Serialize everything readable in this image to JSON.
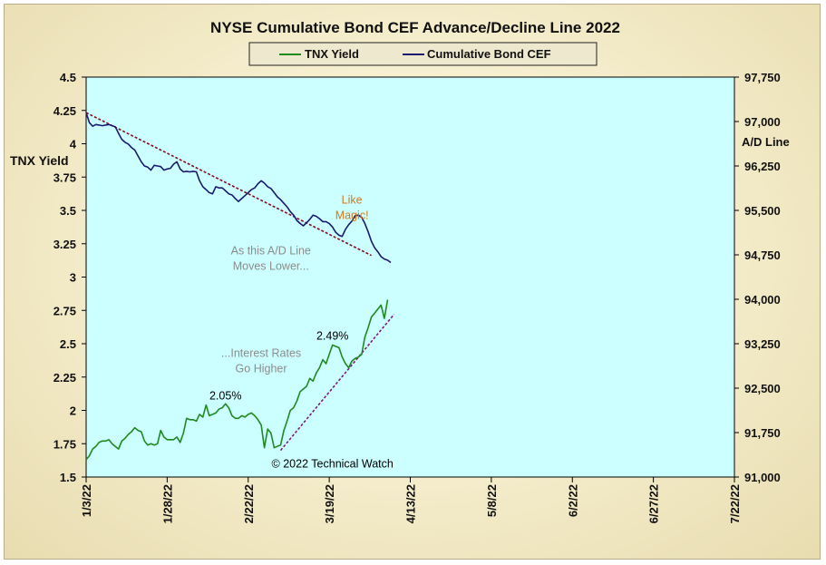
{
  "chart_data": {
    "type": "line",
    "title": "NYSE Cumulative  Bond CEF Advance/Decline  Line 2022",
    "y_left_label": "TNX Yield",
    "y_right_label": "A/D Line",
    "y_left_ticks": [
      "4.5",
      "4.25",
      "4",
      "3.75",
      "3.5",
      "3.25",
      "3",
      "2.75",
      "2.5",
      "2.25",
      "2",
      "1.75",
      "1.5"
    ],
    "y_right_ticks": [
      "97,750",
      "97,000",
      "96,250",
      "95,500",
      "94,750",
      "94,000",
      "93,250",
      "92,500",
      "91,750",
      "91,000"
    ],
    "x_ticks": [
      "1/3/22",
      "1/28/22",
      "2/22/22",
      "3/19/22",
      "4/13/22",
      "5/8/22",
      "6/2/22",
      "6/27/22",
      "7/22/22"
    ],
    "y_left_range": [
      1.5,
      4.5
    ],
    "y_right_range": [
      91000,
      97750
    ],
    "x_range_days": [
      0,
      200
    ],
    "grid": false,
    "legend_position": "top-center",
    "series": [
      {
        "name": "TNX Yield",
        "color": "#1f8a1f",
        "axis": "left",
        "points": [
          [
            0,
            1.63
          ],
          [
            1,
            1.66
          ],
          [
            2,
            1.71
          ],
          [
            3,
            1.73
          ],
          [
            4,
            1.76
          ],
          [
            5,
            1.77
          ],
          [
            6,
            1.77
          ],
          [
            7,
            1.78
          ],
          [
            8,
            1.75
          ],
          [
            9,
            1.73
          ],
          [
            10,
            1.71
          ],
          [
            11,
            1.77
          ],
          [
            12,
            1.79
          ],
          [
            13,
            1.82
          ],
          [
            14,
            1.84
          ],
          [
            15,
            1.87
          ],
          [
            16,
            1.85
          ],
          [
            17,
            1.84
          ],
          [
            18,
            1.77
          ],
          [
            19,
            1.74
          ],
          [
            20,
            1.75
          ],
          [
            21,
            1.74
          ],
          [
            22,
            1.75
          ],
          [
            23,
            1.85
          ],
          [
            24,
            1.8
          ],
          [
            25,
            1.78
          ],
          [
            26,
            1.78
          ],
          [
            27,
            1.78
          ],
          [
            28,
            1.8
          ],
          [
            29,
            1.76
          ],
          [
            30,
            1.83
          ],
          [
            31,
            1.94
          ],
          [
            32,
            1.93
          ],
          [
            33,
            1.93
          ],
          [
            34,
            1.92
          ],
          [
            35,
            1.97
          ],
          [
            36,
            1.95
          ],
          [
            37,
            2.04
          ],
          [
            38,
            1.96
          ],
          [
            39,
            1.97
          ],
          [
            40,
            1.98
          ],
          [
            41,
            2.01
          ],
          [
            42,
            2.02
          ],
          [
            43,
            2.05
          ],
          [
            44,
            2.02
          ],
          [
            45,
            1.96
          ],
          [
            46,
            1.94
          ],
          [
            47,
            1.94
          ],
          [
            48,
            1.96
          ],
          [
            49,
            1.95
          ],
          [
            50,
            1.97
          ],
          [
            51,
            1.98
          ],
          [
            52,
            1.96
          ],
          [
            53,
            1.93
          ],
          [
            54,
            1.89
          ],
          [
            55,
            1.72
          ],
          [
            56,
            1.86
          ],
          [
            57,
            1.83
          ],
          [
            58,
            1.72
          ],
          [
            59,
            1.73
          ],
          [
            60,
            1.74
          ],
          [
            61,
            1.85
          ],
          [
            62,
            1.92
          ],
          [
            63,
            2.0
          ],
          [
            64,
            2.02
          ],
          [
            65,
            2.07
          ],
          [
            66,
            2.14
          ],
          [
            67,
            2.16
          ],
          [
            68,
            2.18
          ],
          [
            69,
            2.24
          ],
          [
            70,
            2.22
          ],
          [
            71,
            2.28
          ],
          [
            72,
            2.32
          ],
          [
            73,
            2.38
          ],
          [
            74,
            2.35
          ],
          [
            75,
            2.42
          ],
          [
            76,
            2.49
          ],
          [
            77,
            2.48
          ],
          [
            78,
            2.47
          ],
          [
            79,
            2.4
          ],
          [
            80,
            2.35
          ],
          [
            81,
            2.32
          ],
          [
            82,
            2.37
          ],
          [
            83,
            2.39
          ],
          [
            84,
            2.4
          ],
          [
            85,
            2.42
          ],
          [
            86,
            2.55
          ],
          [
            87,
            2.62
          ],
          [
            88,
            2.7
          ],
          [
            89,
            2.73
          ],
          [
            90,
            2.76
          ],
          [
            91,
            2.79
          ],
          [
            92,
            2.69
          ],
          [
            93,
            2.83
          ]
        ]
      },
      {
        "name": "Cumulative Bond CEF",
        "color": "#1a1a6e",
        "axis": "right",
        "points": [
          [
            0,
            97150
          ],
          [
            1,
            96980
          ],
          [
            2,
            96920
          ],
          [
            3,
            96950
          ],
          [
            4,
            96940
          ],
          [
            5,
            96930
          ],
          [
            6,
            96940
          ],
          [
            7,
            96950
          ],
          [
            8,
            96930
          ],
          [
            9,
            96910
          ],
          [
            10,
            96800
          ],
          [
            11,
            96700
          ],
          [
            12,
            96650
          ],
          [
            13,
            96620
          ],
          [
            14,
            96560
          ],
          [
            15,
            96520
          ],
          [
            16,
            96420
          ],
          [
            17,
            96320
          ],
          [
            18,
            96250
          ],
          [
            19,
            96230
          ],
          [
            20,
            96180
          ],
          [
            21,
            96260
          ],
          [
            22,
            96250
          ],
          [
            23,
            96240
          ],
          [
            24,
            96180
          ],
          [
            25,
            96200
          ],
          [
            26,
            96210
          ],
          [
            27,
            96280
          ],
          [
            28,
            96320
          ],
          [
            29,
            96200
          ],
          [
            30,
            96150
          ],
          [
            31,
            96160
          ],
          [
            32,
            96150
          ],
          [
            33,
            96160
          ],
          [
            34,
            96150
          ],
          [
            35,
            96000
          ],
          [
            36,
            95900
          ],
          [
            37,
            95850
          ],
          [
            38,
            95800
          ],
          [
            39,
            95780
          ],
          [
            40,
            95900
          ],
          [
            41,
            95880
          ],
          [
            42,
            95880
          ],
          [
            43,
            95830
          ],
          [
            44,
            95780
          ],
          [
            45,
            95760
          ],
          [
            46,
            95700
          ],
          [
            47,
            95650
          ],
          [
            48,
            95700
          ],
          [
            49,
            95750
          ],
          [
            50,
            95800
          ],
          [
            51,
            95850
          ],
          [
            52,
            95880
          ],
          [
            53,
            95950
          ],
          [
            54,
            96000
          ],
          [
            55,
            95960
          ],
          [
            56,
            95900
          ],
          [
            57,
            95870
          ],
          [
            58,
            95800
          ],
          [
            59,
            95730
          ],
          [
            60,
            95680
          ],
          [
            61,
            95620
          ],
          [
            62,
            95560
          ],
          [
            63,
            95480
          ],
          [
            64,
            95420
          ],
          [
            65,
            95330
          ],
          [
            66,
            95280
          ],
          [
            67,
            95240
          ],
          [
            68,
            95290
          ],
          [
            69,
            95350
          ],
          [
            70,
            95420
          ],
          [
            71,
            95400
          ],
          [
            72,
            95360
          ],
          [
            73,
            95310
          ],
          [
            74,
            95310
          ],
          [
            75,
            95280
          ],
          [
            76,
            95220
          ],
          [
            77,
            95130
          ],
          [
            78,
            95080
          ],
          [
            79,
            95060
          ],
          [
            80,
            95180
          ],
          [
            81,
            95260
          ],
          [
            82,
            95320
          ],
          [
            83,
            95410
          ],
          [
            84,
            95420
          ],
          [
            85,
            95380
          ],
          [
            86,
            95280
          ],
          [
            87,
            95140
          ],
          [
            88,
            94980
          ],
          [
            89,
            94870
          ],
          [
            90,
            94800
          ],
          [
            91,
            94720
          ],
          [
            92,
            94680
          ],
          [
            93,
            94660
          ],
          [
            94,
            94620
          ]
        ]
      }
    ],
    "trendlines": [
      {
        "name": "resistance",
        "color": "#7a1020",
        "axis": "right",
        "points": [
          [
            0,
            97150
          ],
          [
            88,
            94740
          ]
        ]
      },
      {
        "name": "support",
        "color": "#7a1a8a",
        "axis": "left",
        "points": [
          [
            60,
            1.7
          ],
          [
            95,
            2.72
          ]
        ]
      }
    ],
    "annotations": [
      {
        "text": "Like\nMagic!",
        "color": "#d07a1e",
        "day": 82,
        "y": 3.55
      },
      {
        "text": "As this A/D Line\nMoves Lower...",
        "color": "#8c8c8c",
        "day": 57,
        "y": 3.17
      },
      {
        "text": "...Interest Rates\nGo Higher",
        "color": "#8c8c8c",
        "day": 54,
        "y": 2.4
      },
      {
        "text": "2.49%",
        "color": "#000000",
        "day": 76,
        "y": 2.53
      },
      {
        "text": "2.05%",
        "color": "#000000",
        "day": 43,
        "y": 2.08
      },
      {
        "text": "© 2022 Technical  Watch",
        "color": "#000000",
        "day": 76,
        "y": 1.57
      }
    ]
  }
}
